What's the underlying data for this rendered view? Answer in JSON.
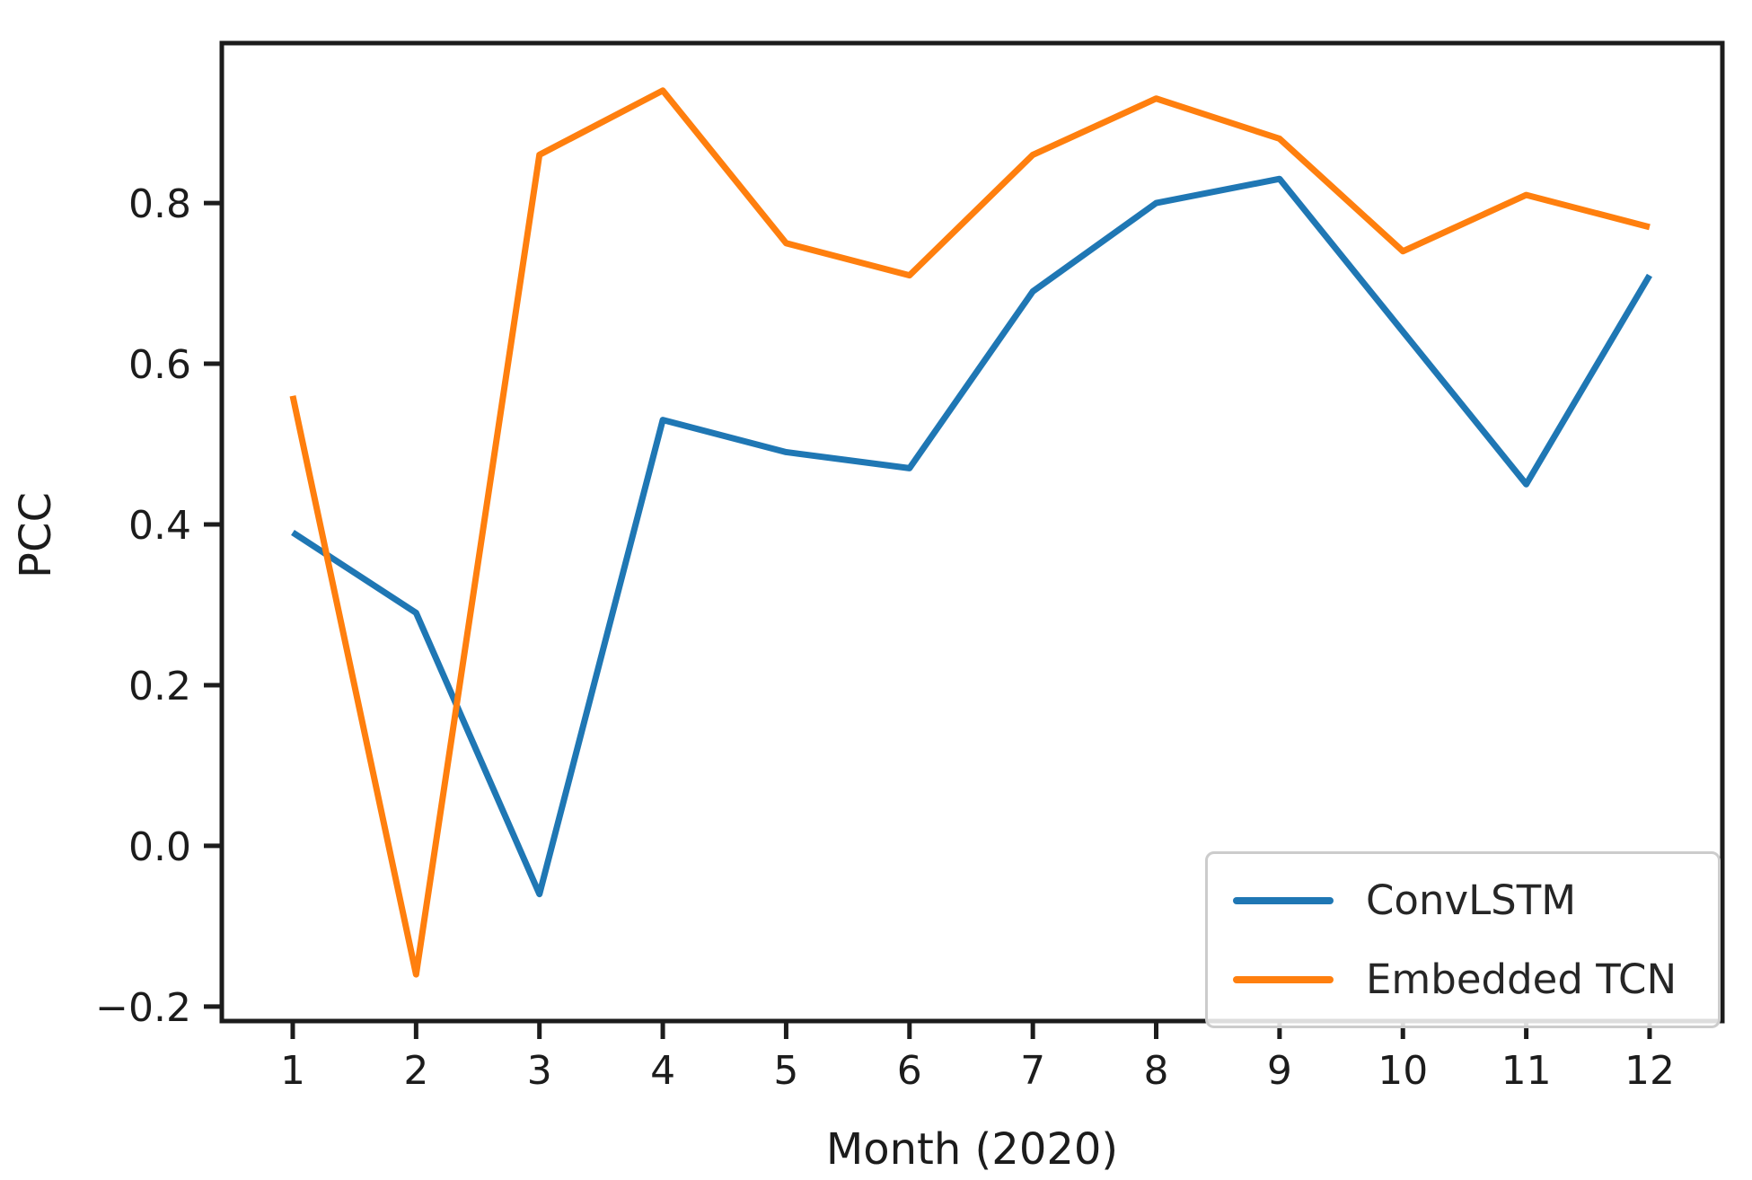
{
  "chart_data": {
    "type": "line",
    "title": "",
    "xlabel": "Month (2020)",
    "ylabel": "PCC",
    "x": [
      1,
      2,
      3,
      4,
      5,
      6,
      7,
      8,
      9,
      10,
      11,
      12
    ],
    "x_tick_labels": [
      "1",
      "2",
      "3",
      "4",
      "5",
      "6",
      "7",
      "8",
      "9",
      "10",
      "11",
      "12"
    ],
    "y_ticks": [
      -0.2,
      0.0,
      0.2,
      0.4,
      0.6,
      0.8
    ],
    "y_tick_labels": [
      "−0.2",
      "0.0",
      "0.2",
      "0.4",
      "0.6",
      "0.8"
    ],
    "xlim": [
      0.425,
      12.59
    ],
    "ylim": [
      -0.218,
      0.999
    ],
    "grid": false,
    "legend_position": "lower right",
    "series": [
      {
        "name": "ConvLSTM",
        "color": "#1f77b4",
        "values": [
          0.39,
          0.29,
          -0.06,
          0.53,
          0.49,
          0.47,
          0.69,
          0.8,
          0.83,
          0.64,
          0.45,
          0.71
        ]
      },
      {
        "name": "Embedded TCN",
        "color": "#ff7f0e",
        "values": [
          0.56,
          -0.16,
          0.86,
          0.94,
          0.75,
          0.71,
          0.86,
          0.93,
          0.88,
          0.74,
          0.81,
          0.77
        ]
      }
    ],
    "axis_color": "#1c1c1c",
    "tick_label_color": "#1c1c1c"
  }
}
